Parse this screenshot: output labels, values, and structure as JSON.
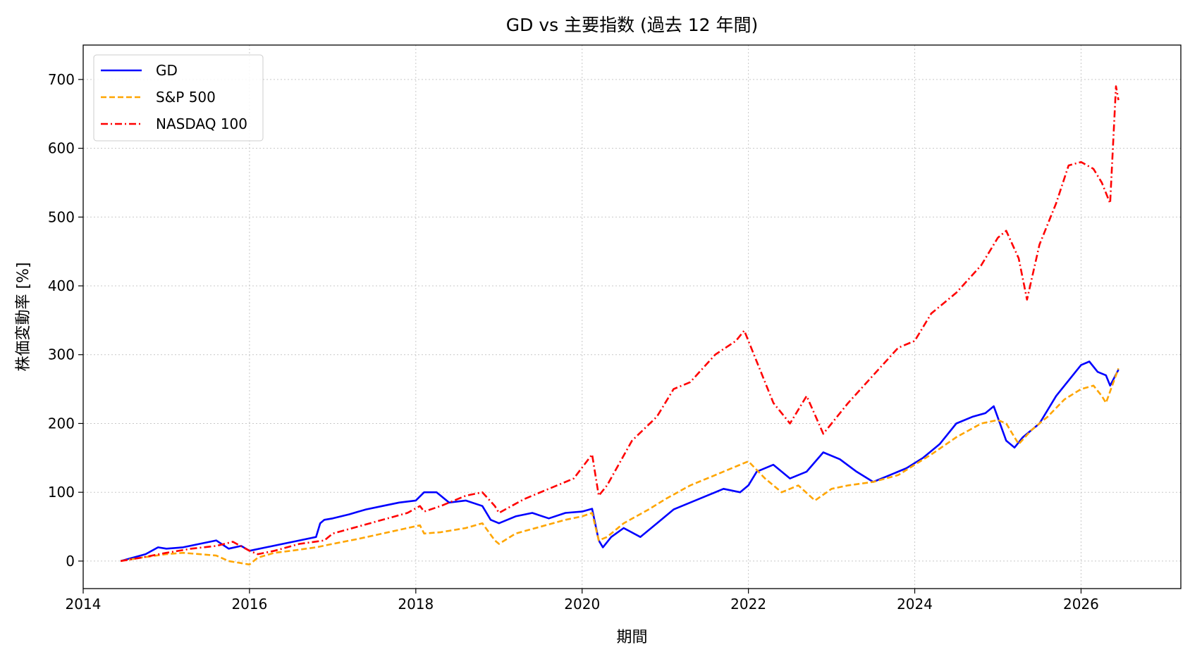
{
  "chart_data": {
    "type": "line",
    "title": "GD vs 主要指数 (過去 12 年間)",
    "xlabel": "期間",
    "ylabel": "株価変動率 [%]",
    "xlim": [
      2014.0,
      2027.2
    ],
    "ylim": [
      -40,
      750
    ],
    "x_ticks": [
      2014,
      2016,
      2018,
      2020,
      2022,
      2024,
      2026
    ],
    "y_ticks": [
      0,
      100,
      200,
      300,
      400,
      500,
      600,
      700
    ],
    "grid": true,
    "legend_position": "top-left",
    "series": [
      {
        "name": "GD",
        "color": "#0000ff",
        "dash": "solid",
        "x": [
          2014.45,
          2014.6,
          2014.75,
          2014.9,
          2015.0,
          2015.2,
          2015.4,
          2015.6,
          2015.75,
          2015.9,
          2016.0,
          2016.2,
          2016.4,
          2016.6,
          2016.8,
          2016.85,
          2016.9,
          2017.0,
          2017.2,
          2017.4,
          2017.6,
          2017.8,
          2018.0,
          2018.1,
          2018.25,
          2018.4,
          2018.6,
          2018.8,
          2018.9,
          2019.0,
          2019.2,
          2019.4,
          2019.6,
          2019.8,
          2020.0,
          2020.12,
          2020.2,
          2020.25,
          2020.35,
          2020.5,
          2020.7,
          2020.9,
          2021.1,
          2021.3,
          2021.5,
          2021.7,
          2021.9,
          2022.0,
          2022.1,
          2022.3,
          2022.5,
          2022.7,
          2022.9,
          2023.1,
          2023.3,
          2023.5,
          2023.7,
          2023.9,
          2024.1,
          2024.3,
          2024.5,
          2024.7,
          2024.85,
          2024.95,
          2025.1,
          2025.2,
          2025.3,
          2025.5,
          2025.7,
          2025.9,
          2026.0,
          2026.1,
          2026.2,
          2026.3,
          2026.35,
          2026.45
        ],
        "y": [
          0,
          5,
          10,
          20,
          18,
          20,
          25,
          30,
          18,
          22,
          15,
          20,
          25,
          30,
          35,
          55,
          60,
          62,
          68,
          75,
          80,
          85,
          88,
          100,
          100,
          85,
          88,
          80,
          60,
          55,
          65,
          70,
          62,
          70,
          72,
          76,
          30,
          20,
          35,
          48,
          35,
          55,
          75,
          85,
          95,
          105,
          100,
          110,
          130,
          140,
          120,
          130,
          158,
          148,
          130,
          115,
          125,
          135,
          150,
          170,
          200,
          210,
          215,
          225,
          175,
          165,
          180,
          200,
          240,
          270,
          285,
          290,
          275,
          270,
          255,
          278
        ]
      },
      {
        "name": "S&P 500",
        "color": "#ffa500",
        "dash": "dashed",
        "x": [
          2014.45,
          2014.7,
          2015.0,
          2015.2,
          2015.4,
          2015.6,
          2015.75,
          2016.0,
          2016.1,
          2016.3,
          2016.5,
          2016.8,
          2017.0,
          2017.3,
          2017.6,
          2017.9,
          2018.05,
          2018.1,
          2018.3,
          2018.6,
          2018.8,
          2018.95,
          2019.0,
          2019.2,
          2019.5,
          2019.8,
          2020.0,
          2020.12,
          2020.2,
          2020.3,
          2020.5,
          2020.8,
          2021.0,
          2021.3,
          2021.6,
          2021.9,
          2022.0,
          2022.2,
          2022.4,
          2022.6,
          2022.8,
          2023.0,
          2023.2,
          2023.5,
          2023.8,
          2024.0,
          2024.2,
          2024.5,
          2024.8,
          2025.0,
          2025.1,
          2025.25,
          2025.4,
          2025.6,
          2025.8,
          2026.0,
          2026.15,
          2026.25,
          2026.3,
          2026.45
        ],
        "y": [
          0,
          5,
          10,
          12,
          10,
          8,
          0,
          -5,
          5,
          12,
          15,
          20,
          25,
          32,
          40,
          48,
          52,
          40,
          42,
          48,
          55,
          30,
          25,
          40,
          50,
          60,
          65,
          70,
          30,
          35,
          55,
          75,
          90,
          110,
          125,
          140,
          145,
          120,
          100,
          110,
          88,
          105,
          110,
          115,
          125,
          140,
          155,
          180,
          200,
          205,
          200,
          170,
          190,
          210,
          235,
          250,
          255,
          240,
          230,
          280
        ]
      },
      {
        "name": "NASDAQ 100",
        "color": "#ff0000",
        "dash": "dashdot",
        "x": [
          2014.45,
          2014.7,
          2015.0,
          2015.3,
          2015.6,
          2015.8,
          2016.0,
          2016.1,
          2016.3,
          2016.6,
          2016.9,
          2017.0,
          2017.3,
          2017.6,
          2017.9,
          2018.05,
          2018.1,
          2018.3,
          2018.6,
          2018.8,
          2018.95,
          2019.0,
          2019.3,
          2019.6,
          2019.9,
          2020.12,
          2020.2,
          2020.3,
          2020.6,
          2020.9,
          2021.1,
          2021.3,
          2021.6,
          2021.85,
          2021.95,
          2022.1,
          2022.3,
          2022.5,
          2022.7,
          2022.9,
          2023.0,
          2023.2,
          2023.5,
          2023.8,
          2024.0,
          2024.2,
          2024.5,
          2024.8,
          2025.0,
          2025.1,
          2025.25,
          2025.35,
          2025.5,
          2025.7,
          2025.85,
          2026.0,
          2026.15,
          2026.25,
          2026.35,
          2026.42,
          2026.45
        ],
        "y": [
          0,
          5,
          12,
          18,
          22,
          28,
          15,
          10,
          15,
          25,
          30,
          40,
          50,
          60,
          70,
          80,
          72,
          80,
          95,
          100,
          80,
          70,
          90,
          105,
          120,
          155,
          95,
          110,
          175,
          210,
          250,
          260,
          300,
          320,
          335,
          290,
          230,
          200,
          240,
          185,
          200,
          230,
          270,
          310,
          320,
          360,
          390,
          430,
          470,
          480,
          440,
          380,
          460,
          520,
          575,
          580,
          570,
          550,
          520,
          690,
          670
        ]
      }
    ]
  }
}
